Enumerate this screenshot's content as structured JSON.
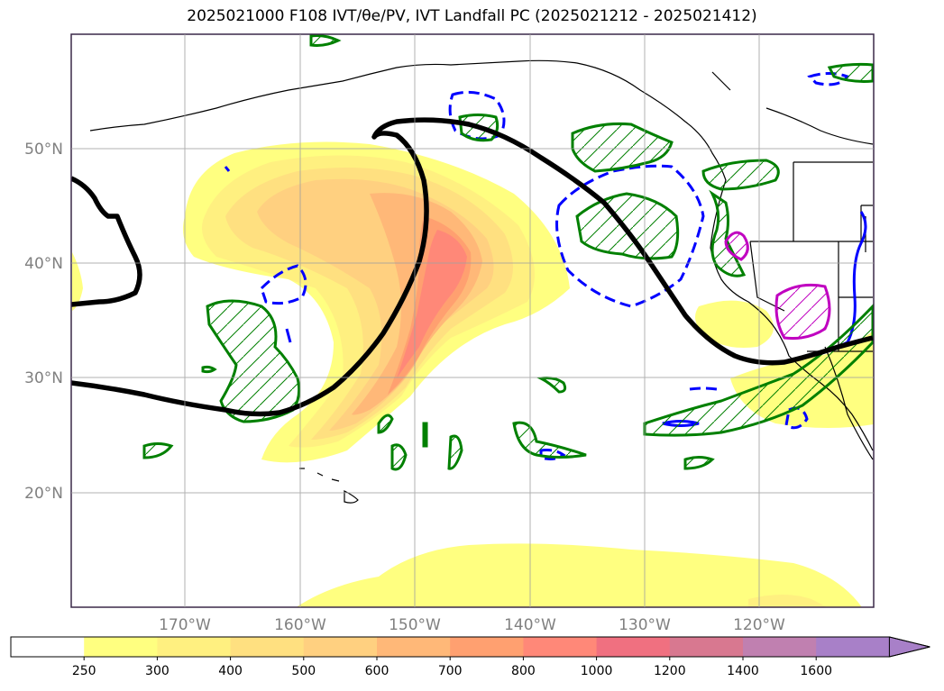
{
  "title": "2025021000 F108 IVT/θe/PV, IVT Landfall PC (2025021212 - 2025021412)",
  "map": {
    "region": "North Pacific / western North America",
    "lat_labels": [
      "50°N",
      "40°N",
      "30°N",
      "20°N"
    ],
    "lon_labels": [
      "170°W",
      "160°W",
      "150°W",
      "140°W",
      "130°W",
      "120°W"
    ],
    "fill_variable": "IVT",
    "contours": [
      {
        "kind": "theta-e thick contour",
        "color": "#000000"
      },
      {
        "kind": "PV hatched positive",
        "color": "#008000"
      },
      {
        "kind": "PV dashed negative",
        "color": "#0000ff"
      },
      {
        "kind": "high PV",
        "color": "#c000c0"
      }
    ]
  },
  "colorbar": {
    "ticks": [
      "250",
      "300",
      "400",
      "500",
      "600",
      "700",
      "800",
      "1000",
      "1200",
      "1400",
      "1600"
    ],
    "colors": [
      "#ffffff",
      "#ffff80",
      "#fff080",
      "#ffe080",
      "#ffd080",
      "#ffb878",
      "#ffa070",
      "#ff8878",
      "#f07080",
      "#d87890",
      "#c080b0",
      "#a880c8"
    ],
    "extend": "max"
  }
}
